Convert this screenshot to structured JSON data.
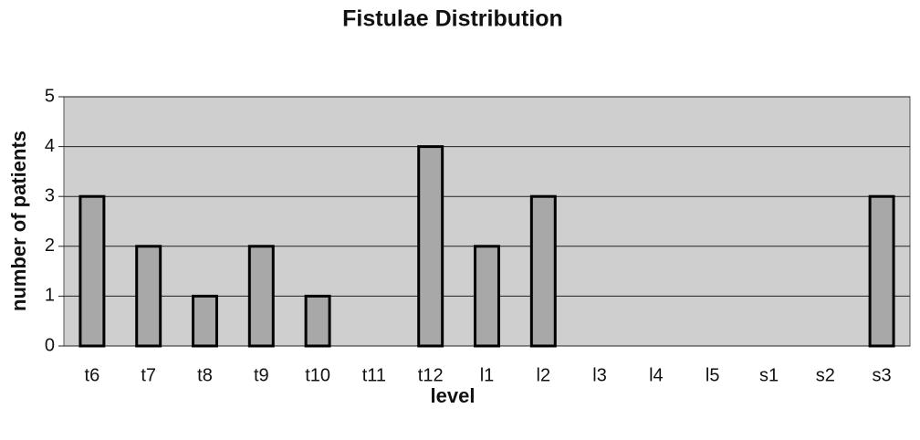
{
  "chart_data": {
    "type": "bar",
    "title": "Fistulae Distribution",
    "x_label": "level",
    "y_label": "number of patients",
    "categories": [
      "t6",
      "t7",
      "t8",
      "t9",
      "t10",
      "t11",
      "t12",
      "l1",
      "l2",
      "l3",
      "l4",
      "l5",
      "s1",
      "s2",
      "s3"
    ],
    "values": [
      3,
      2,
      1,
      2,
      1,
      0,
      4,
      2,
      3,
      0,
      0,
      0,
      0,
      0,
      3
    ],
    "color": "#a8a8a8",
    "plot_background": "#cfcfcf",
    "ylim": [
      0,
      5
    ],
    "yticks": [
      0,
      1,
      2,
      3,
      4,
      5
    ],
    "grid": true
  }
}
